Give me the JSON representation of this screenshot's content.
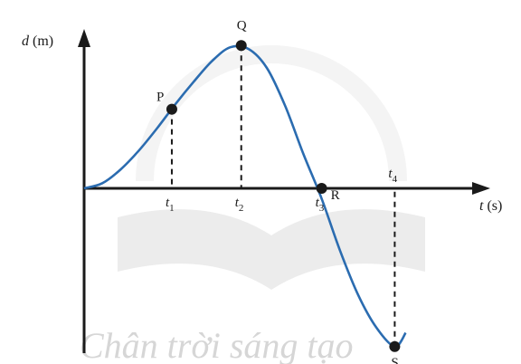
{
  "watermark_text": "Chân trời sáng tạo",
  "chart_data": {
    "type": "line",
    "title": "",
    "ylabel_var": "d",
    "ylabel_unit": " (m)",
    "xlabel_var": "t",
    "xlabel_unit": " (s)",
    "xlim": [
      0,
      10
    ],
    "ylim": [
      -4.5,
      4.5
    ],
    "grid": false,
    "curve": {
      "x": [
        0,
        0.5,
        1,
        1.5,
        2,
        2.5,
        3,
        3.5,
        4,
        4.5,
        5,
        5.5,
        6,
        6.5,
        7,
        7.5,
        8,
        8.5,
        8.8
      ],
      "y": [
        0,
        0.15,
        0.55,
        1.1,
        1.75,
        2.45,
        3.1,
        3.7,
        4.1,
        4.05,
        3.5,
        2.4,
        1.0,
        -0.3,
        -1.8,
        -3.1,
        -4.05,
        -4.6,
        -4.2
      ]
    },
    "points": [
      {
        "label": "P",
        "x": 2.4,
        "y": 2.3
      },
      {
        "label": "Q",
        "x": 4.3,
        "y": 4.15
      },
      {
        "label": "R",
        "x": 6.5,
        "y": 0
      },
      {
        "label": "S",
        "x": 8.5,
        "y": -4.6
      }
    ],
    "ticks": [
      {
        "var": "t",
        "sub": "1",
        "x": 2.4
      },
      {
        "var": "t",
        "sub": "2",
        "x": 4.3
      },
      {
        "var": "t",
        "sub": "3",
        "x": 6.5
      },
      {
        "var": "t",
        "sub": "4",
        "x": 8.5
      }
    ]
  }
}
